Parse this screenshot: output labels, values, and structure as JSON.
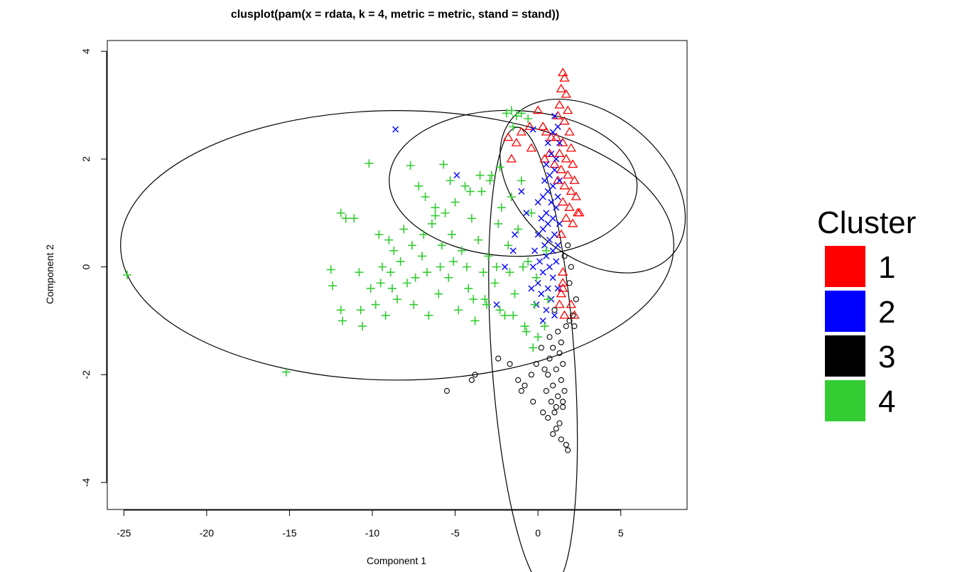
{
  "chart_data": {
    "type": "scatter",
    "title": "clusplot(pam(x = rdata, k = 4, metric = metric, stand = stand))",
    "xlabel": "Component 1",
    "ylabel": "Component 2",
    "xlim": [
      -26,
      9
    ],
    "ylim": [
      -4.5,
      4.2
    ],
    "x_ticks": [
      -25,
      -20,
      -15,
      -10,
      -5,
      0,
      5
    ],
    "y_ticks": [
      -4,
      -2,
      0,
      2,
      4
    ],
    "x_tick_labels": [
      "-25",
      "-20",
      "-15",
      "-10",
      "-5",
      "0",
      "5"
    ],
    "y_tick_labels": [
      "-4",
      "-2",
      "0",
      "2",
      "4"
    ],
    "grid": false,
    "legend": {
      "title": "Cluster",
      "placement": "right",
      "entries": [
        {
          "label": "1",
          "color": "#ff0000"
        },
        {
          "label": "2",
          "color": "#0000ff"
        },
        {
          "label": "3",
          "color": "#000000"
        },
        {
          "label": "4",
          "color": "#33cc33"
        }
      ]
    },
    "ellipses": [
      {
        "cluster": "1",
        "cx": 3.3,
        "cy": 1.5,
        "rx": 4.3,
        "ry": 1.95,
        "angle": 50
      },
      {
        "cluster": "2",
        "cx": -1.5,
        "cy": 1.55,
        "rx": 4.4,
        "ry": 2.3,
        "angle": 88
      },
      {
        "cluster": "3",
        "cx": -0.3,
        "cy": -1.7,
        "rx": 2.5,
        "ry": 4.3,
        "angle": 4
      },
      {
        "cluster": "4",
        "cx": -8.5,
        "cy": 0.4,
        "rx": 16.7,
        "ry": 2.5,
        "angle": 0
      }
    ],
    "series": [
      {
        "name": "1",
        "marker": "triangle",
        "color": "#ff0000",
        "points": [
          [
            1.5,
            3.6
          ],
          [
            1.6,
            3.5
          ],
          [
            1.4,
            3.3
          ],
          [
            1.7,
            3.2
          ],
          [
            1.3,
            3.0
          ],
          [
            1.8,
            2.9
          ],
          [
            1.2,
            2.8
          ],
          [
            1.6,
            2.7
          ],
          [
            1.9,
            2.5
          ],
          [
            1.1,
            2.4
          ],
          [
            1.5,
            2.3
          ],
          [
            2.0,
            2.2
          ],
          [
            1.3,
            2.1
          ],
          [
            1.7,
            2.0
          ],
          [
            2.1,
            1.9
          ],
          [
            1.0,
            1.9
          ],
          [
            1.4,
            1.8
          ],
          [
            1.8,
            1.7
          ],
          [
            2.2,
            1.6
          ],
          [
            1.2,
            1.6
          ],
          [
            1.6,
            1.5
          ],
          [
            2.0,
            1.4
          ],
          [
            2.3,
            1.3
          ],
          [
            1.5,
            1.2
          ],
          [
            1.9,
            1.1
          ],
          [
            2.4,
            1.0
          ],
          [
            1.7,
            0.9
          ],
          [
            2.1,
            0.8
          ],
          [
            2.5,
            1.0
          ],
          [
            1.4,
            0.6
          ],
          [
            0.8,
            2.4
          ],
          [
            0.5,
            2.5
          ],
          [
            0.0,
            2.9
          ],
          [
            0.3,
            2.6
          ],
          [
            -0.5,
            2.6
          ],
          [
            -1.0,
            2.5
          ],
          [
            -1.8,
            2.4
          ],
          [
            -1.3,
            2.3
          ],
          [
            -0.4,
            2.2
          ],
          [
            -1.6,
            2.0
          ],
          [
            0.7,
            2.1
          ],
          [
            0.4,
            2.0
          ],
          [
            1.5,
            -0.3
          ],
          [
            1.4,
            -0.5
          ],
          [
            1.3,
            -0.7
          ],
          [
            1.6,
            -0.9
          ],
          [
            1.5,
            -0.1
          ],
          [
            2.2,
            -0.9
          ],
          [
            2.0,
            -0.7
          ],
          [
            1.5,
            -0.4
          ]
        ]
      },
      {
        "name": "2",
        "marker": "x",
        "color": "#0000ff",
        "points": [
          [
            1.0,
            2.8
          ],
          [
            1.2,
            2.6
          ],
          [
            0.9,
            2.5
          ],
          [
            1.3,
            2.3
          ],
          [
            0.6,
            2.3
          ],
          [
            0.8,
            2.1
          ],
          [
            1.1,
            2.0
          ],
          [
            0.5,
            1.9
          ],
          [
            1.0,
            1.8
          ],
          [
            0.7,
            1.7
          ],
          [
            1.3,
            1.6
          ],
          [
            0.4,
            1.6
          ],
          [
            0.9,
            1.5
          ],
          [
            0.6,
            1.4
          ],
          [
            1.2,
            1.3
          ],
          [
            0.3,
            1.3
          ],
          [
            0.8,
            1.2
          ],
          [
            1.1,
            1.1
          ],
          [
            0.5,
            1.0
          ],
          [
            0.2,
            0.9
          ],
          [
            0.9,
            0.9
          ],
          [
            0.6,
            0.8
          ],
          [
            1.3,
            0.8
          ],
          [
            0.3,
            0.7
          ],
          [
            1.0,
            0.6
          ],
          [
            0.0,
            0.6
          ],
          [
            0.7,
            0.5
          ],
          [
            1.2,
            0.4
          ],
          [
            0.4,
            0.4
          ],
          [
            -0.2,
            0.3
          ],
          [
            0.9,
            0.3
          ],
          [
            0.5,
            0.2
          ],
          [
            0.1,
            0.1
          ],
          [
            1.1,
            0.1
          ],
          [
            0.7,
            0.0
          ],
          [
            -0.3,
            0.0
          ],
          [
            0.3,
            -0.1
          ],
          [
            0.9,
            -0.2
          ],
          [
            0.0,
            -0.3
          ],
          [
            0.6,
            -0.4
          ],
          [
            1.2,
            -0.4
          ],
          [
            -0.4,
            -0.4
          ],
          [
            0.2,
            -0.5
          ],
          [
            0.8,
            -0.6
          ],
          [
            -0.1,
            -0.7
          ],
          [
            0.5,
            -0.8
          ],
          [
            1.0,
            -0.9
          ],
          [
            0.3,
            -1.0
          ],
          [
            -8.6,
            2.55
          ],
          [
            -4.9,
            1.7
          ],
          [
            -0.3,
            2.55
          ],
          [
            -1.0,
            1.4
          ],
          [
            -1.4,
            0.6
          ],
          [
            -2.0,
            0.0
          ],
          [
            -2.5,
            -0.7
          ],
          [
            -0.7,
            1.0
          ],
          [
            -1.5,
            0.3
          ],
          [
            0.0,
            1.2
          ]
        ]
      },
      {
        "name": "3",
        "marker": "circle",
        "color": "#000000",
        "points": [
          [
            1.8,
            0.4
          ],
          [
            1.6,
            0.2
          ],
          [
            2.0,
            0.0
          ],
          [
            1.9,
            -0.3
          ],
          [
            2.3,
            -0.6
          ],
          [
            2.1,
            -0.9
          ],
          [
            1.7,
            -1.1
          ],
          [
            1.2,
            -1.2
          ],
          [
            1.4,
            -1.4
          ],
          [
            0.9,
            -1.5
          ],
          [
            1.3,
            -1.6
          ],
          [
            0.7,
            -1.7
          ],
          [
            1.5,
            -1.8
          ],
          [
            1.1,
            -1.9
          ],
          [
            0.6,
            -2.0
          ],
          [
            1.4,
            -2.1
          ],
          [
            0.9,
            -2.2
          ],
          [
            1.6,
            -2.3
          ],
          [
            0.5,
            -2.3
          ],
          [
            1.2,
            -2.4
          ],
          [
            0.8,
            -2.5
          ],
          [
            1.5,
            -2.6
          ],
          [
            1.0,
            -2.7
          ],
          [
            0.6,
            -2.8
          ],
          [
            1.3,
            -2.9
          ],
          [
            1.1,
            -3.0
          ],
          [
            0.9,
            -3.1
          ],
          [
            1.4,
            -3.2
          ],
          [
            1.7,
            -3.3
          ],
          [
            1.8,
            -3.4
          ],
          [
            0.2,
            -1.5
          ],
          [
            -0.1,
            -1.8
          ],
          [
            -0.4,
            -2.0
          ],
          [
            -0.8,
            -2.2
          ],
          [
            -1.2,
            -2.1
          ],
          [
            -1.7,
            -1.8
          ],
          [
            -2.4,
            -1.7
          ],
          [
            -3.8,
            -2.0
          ],
          [
            -4.0,
            -2.1
          ],
          [
            -5.5,
            -2.3
          ],
          [
            -1.0,
            -2.3
          ],
          [
            -0.3,
            -2.5
          ],
          [
            0.3,
            -2.7
          ],
          [
            0.7,
            -1.3
          ],
          [
            1.0,
            -0.8
          ],
          [
            1.5,
            -2.5
          ],
          [
            1.9,
            -1.0
          ],
          [
            2.2,
            -1.1
          ],
          [
            0.4,
            -1.9
          ],
          [
            1.1,
            -2.6
          ]
        ]
      },
      {
        "name": "4",
        "marker": "plus",
        "color": "#33cc33",
        "points": [
          [
            -24.8,
            -0.15
          ],
          [
            -15.2,
            -1.95
          ],
          [
            -12.5,
            -0.05
          ],
          [
            -12.4,
            -0.35
          ],
          [
            -11.9,
            -0.8
          ],
          [
            -11.8,
            -1.0
          ],
          [
            -11.9,
            1.0
          ],
          [
            -11.6,
            0.9
          ],
          [
            -11.1,
            0.9
          ],
          [
            -10.8,
            -0.1
          ],
          [
            -10.6,
            -1.1
          ],
          [
            -10.7,
            -0.8
          ],
          [
            -10.2,
            1.92
          ],
          [
            -9.8,
            -0.7
          ],
          [
            -9.6,
            0.6
          ],
          [
            -9.2,
            -0.9
          ],
          [
            -9.0,
            0.5
          ],
          [
            -8.8,
            -0.4
          ],
          [
            -8.5,
            -0.6
          ],
          [
            -8.3,
            0.1
          ],
          [
            -8.1,
            0.7
          ],
          [
            -7.9,
            -0.3
          ],
          [
            -7.7,
            1.88
          ],
          [
            -7.5,
            -0.7
          ],
          [
            -7.2,
            1.5
          ],
          [
            -7.0,
            0.2
          ],
          [
            -6.8,
            1.3
          ],
          [
            -6.6,
            -0.9
          ],
          [
            -6.4,
            0.8
          ],
          [
            -6.2,
            1.1
          ],
          [
            -6.0,
            -0.5
          ],
          [
            -5.8,
            0.4
          ],
          [
            -5.6,
            1.0
          ],
          [
            -5.4,
            -0.2
          ],
          [
            -5.2,
            0.6
          ],
          [
            -5.0,
            1.2
          ],
          [
            -4.8,
            -0.8
          ],
          [
            -4.6,
            0.3
          ],
          [
            -4.4,
            1.5
          ],
          [
            -4.2,
            -0.4
          ],
          [
            -4.0,
            0.9
          ],
          [
            -3.8,
            -1.0
          ],
          [
            -3.6,
            0.5
          ],
          [
            -3.4,
            1.4
          ],
          [
            -3.2,
            -0.6
          ],
          [
            -3.0,
            0.2
          ],
          [
            -2.8,
            1.7
          ],
          [
            -2.6,
            -0.3
          ],
          [
            -2.4,
            0.8
          ],
          [
            -2.2,
            1.1
          ],
          [
            -2.0,
            -0.9
          ],
          [
            -1.8,
            0.4
          ],
          [
            -1.6,
            1.3
          ],
          [
            -1.4,
            -0.5
          ],
          [
            -1.2,
            0.7
          ],
          [
            -1.0,
            1.6
          ],
          [
            -0.8,
            -1.1
          ],
          [
            -0.6,
            0.1
          ],
          [
            -0.4,
            1.0
          ],
          [
            -0.2,
            -0.7
          ],
          [
            -1.9,
            2.85
          ],
          [
            -1.6,
            2.9
          ],
          [
            -1.3,
            2.8
          ],
          [
            -1.0,
            2.85
          ],
          [
            -0.6,
            2.75
          ],
          [
            -1.5,
            2.6
          ],
          [
            -2.3,
            1.85
          ],
          [
            -2.9,
            1.6
          ],
          [
            -3.5,
            1.7
          ],
          [
            -4.1,
            1.4
          ],
          [
            -5.3,
            1.6
          ],
          [
            -5.7,
            1.9
          ],
          [
            -6.2,
            0.95
          ],
          [
            -6.9,
            0.6
          ],
          [
            -7.6,
            0.4
          ],
          [
            -8.7,
            0.3
          ],
          [
            -9.4,
            0.0
          ],
          [
            -10.1,
            -0.4
          ],
          [
            -9.5,
            -0.3
          ],
          [
            -8.9,
            -0.1
          ],
          [
            -7.4,
            -0.2
          ],
          [
            -6.7,
            -0.1
          ],
          [
            -5.9,
            0.0
          ],
          [
            -5.1,
            0.1
          ],
          [
            -4.3,
            0.0
          ],
          [
            -3.3,
            -0.1
          ],
          [
            -2.5,
            0.0
          ],
          [
            -1.7,
            -0.1
          ],
          [
            -0.9,
            0.0
          ],
          [
            -0.1,
            -0.2
          ],
          [
            -3.9,
            -0.6
          ],
          [
            -3.1,
            -0.7
          ],
          [
            -2.3,
            -0.8
          ],
          [
            -1.5,
            -0.9
          ],
          [
            -0.7,
            -1.2
          ],
          [
            -0.3,
            -1.5
          ],
          [
            0.0,
            -1.3
          ],
          [
            0.4,
            -1.1
          ],
          [
            0.6,
            -0.6
          ],
          [
            0.5,
            0.3
          ]
        ]
      }
    ]
  }
}
